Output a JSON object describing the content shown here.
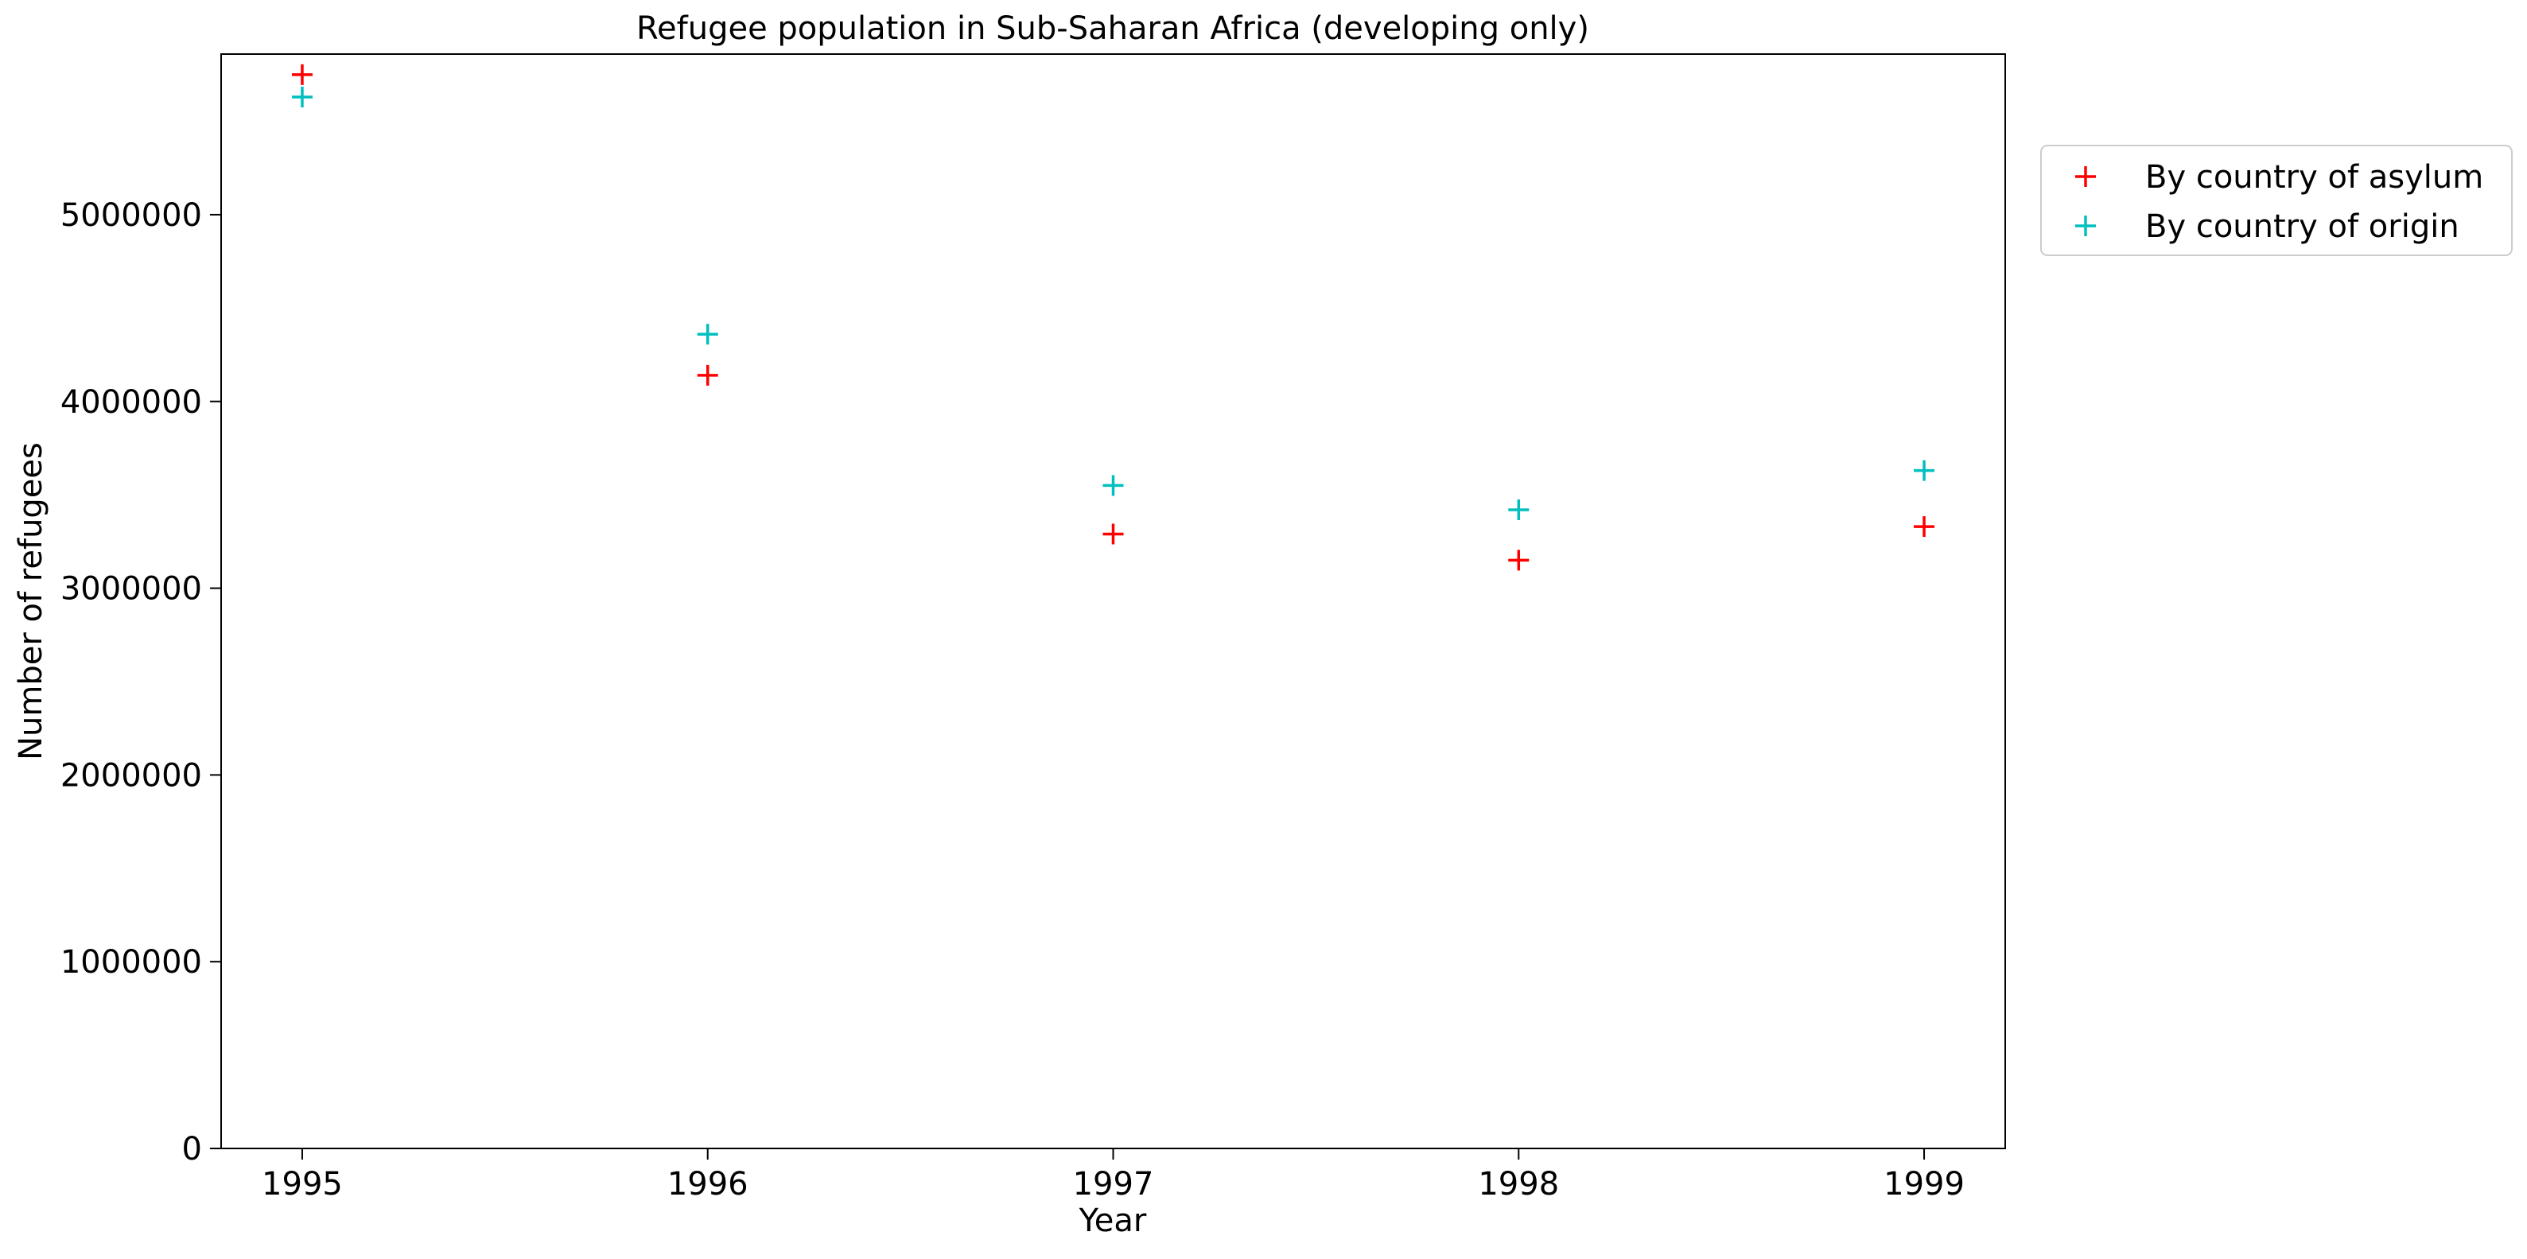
{
  "chart_data": {
    "type": "scatter",
    "title": "Refugee population in Sub-Saharan Africa (developing only)",
    "xlabel": "Year",
    "ylabel": "Number of refugees",
    "x": [
      1995,
      1996,
      1997,
      1998,
      1999
    ],
    "x_tick_labels": [
      "1995",
      "1996",
      "1997",
      "1998",
      "1999"
    ],
    "xlim": [
      1994.8,
      1999.2
    ],
    "y_ticks": [
      0,
      1000000,
      2000000,
      3000000,
      4000000,
      5000000
    ],
    "y_tick_labels": [
      "0",
      "1000000",
      "2000000",
      "3000000",
      "4000000",
      "5000000"
    ],
    "ylim": [
      0,
      5860000
    ],
    "grid": false,
    "legend_position": "outside-right-top",
    "marker": "+",
    "series": [
      {
        "name": "By country of asylum",
        "color": "#ff0000",
        "values": [
          5750000,
          4140000,
          3290000,
          3150000,
          3330000
        ]
      },
      {
        "name": "By country of origin",
        "color": "#00bfbf",
        "values": [
          5630000,
          4360000,
          3550000,
          3420000,
          3630000
        ]
      }
    ]
  }
}
